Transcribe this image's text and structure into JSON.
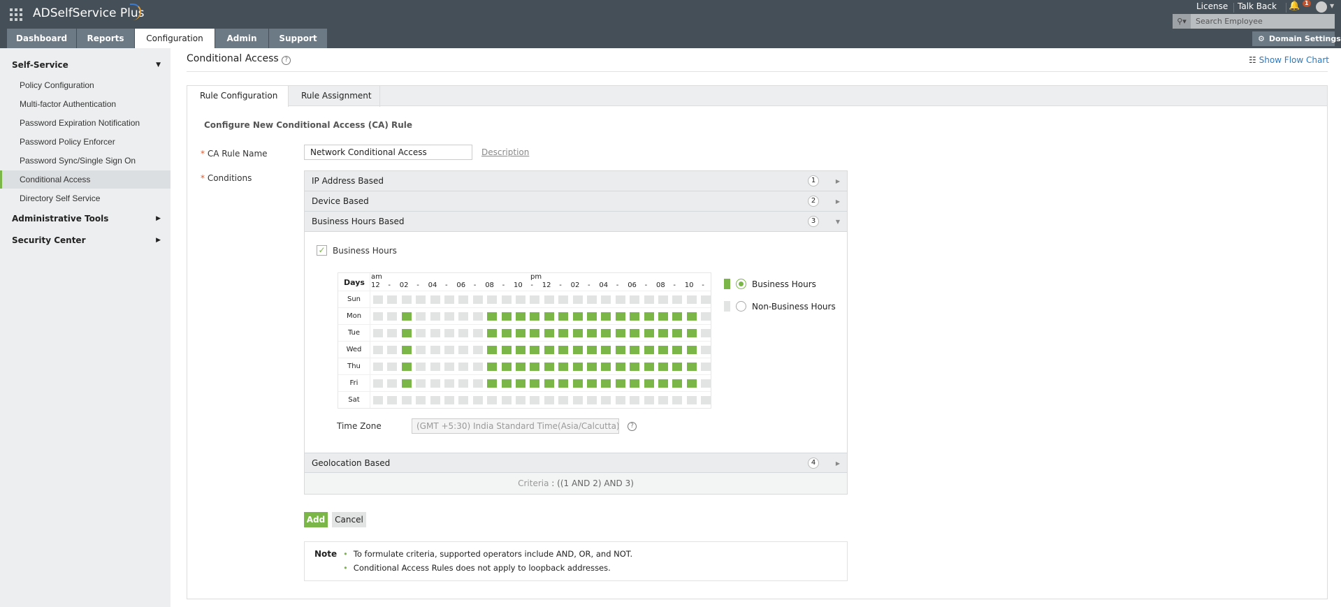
{
  "app": {
    "title": "ADSelfService Plus",
    "tabs": [
      "Dashboard",
      "Reports",
      "Configuration",
      "Admin",
      "Support"
    ],
    "active_tab": "Configuration",
    "links": {
      "license": "License",
      "talk_back": "Talk Back",
      "notifications": "1"
    },
    "search_placeholder": "Search Employee",
    "domain_settings": "Domain Settings"
  },
  "sidebar": {
    "sections": [
      {
        "label": "Self-Service",
        "items": [
          "Policy Configuration",
          "Multi-factor Authentication",
          "Password Expiration Notification",
          "Password Policy Enforcer",
          "Password Sync/Single Sign On",
          "Conditional Access",
          "Directory Self Service"
        ]
      },
      {
        "label": "Administrative Tools"
      },
      {
        "label": "Security Center"
      }
    ],
    "active": "Conditional Access"
  },
  "page": {
    "title": "Conditional Access",
    "show_flow_chart": "Show Flow Chart",
    "tabs": [
      "Rule Configuration",
      "Rule Assignment"
    ],
    "heading": "Configure New Conditional Access (CA) Rule",
    "rule_name_label": "CA Rule Name",
    "rule_name_value": "Network Conditional Access",
    "description_link": "Description",
    "conditions_label": "Conditions",
    "conditions": [
      {
        "label": "IP Address Based",
        "num": "1"
      },
      {
        "label": "Device Based",
        "num": "2"
      },
      {
        "label": "Business Hours Based",
        "num": "3",
        "expanded": true
      },
      {
        "label": "Geolocation Based",
        "num": "4"
      }
    ],
    "business_hours_checkbox": "Business Hours",
    "business_hours_checked": true,
    "grid": {
      "days_label": "Days",
      "am": "am",
      "pm": "pm",
      "hour_labels": [
        "12",
        "-",
        "02",
        "-",
        "04",
        "-",
        "06",
        "-",
        "08",
        "-",
        "10",
        "-",
        "12",
        "-",
        "02",
        "-",
        "04",
        "-",
        "06",
        "-",
        "08",
        "-",
        "10",
        "-"
      ],
      "days": [
        "Sun",
        "Mon",
        "Tue",
        "Wed",
        "Thu",
        "Fri",
        "Sat"
      ],
      "business_hours": {
        "Sun": [],
        "Mon": [
          2,
          8,
          9,
          10,
          11,
          12,
          13,
          14,
          15,
          16,
          17,
          18,
          19,
          20,
          21,
          22
        ],
        "Tue": [
          2,
          8,
          9,
          10,
          11,
          12,
          13,
          14,
          15,
          16,
          17,
          18,
          19,
          20,
          21,
          22
        ],
        "Wed": [
          2,
          8,
          9,
          10,
          11,
          12,
          13,
          14,
          15,
          16,
          17,
          18,
          19,
          20,
          21,
          22
        ],
        "Thu": [
          2,
          8,
          9,
          10,
          11,
          12,
          13,
          14,
          15,
          16,
          17,
          18,
          19,
          20,
          21,
          22
        ],
        "Fri": [
          2,
          8,
          9,
          10,
          11,
          12,
          13,
          14,
          15,
          16,
          17,
          18,
          19,
          20,
          21,
          22
        ],
        "Sat": []
      }
    },
    "legend": {
      "business": "Business Hours",
      "non_business": "Non-Business Hours",
      "selected": "business"
    },
    "time_zone_label": "Time Zone",
    "time_zone_value": "(GMT +5:30) India Standard Time(Asia/Calcutta)",
    "criteria_label": "Criteria",
    "criteria_value": "((1 AND 2) AND 3)",
    "add": "Add",
    "cancel": "Cancel",
    "note_label": "Note",
    "notes": [
      "To formulate criteria, supported operators include AND, OR, and NOT.",
      "Conditional Access Rules does not apply to loopback addresses."
    ]
  },
  "colors": {
    "accent": "#7ab648",
    "topbar": "#454f57",
    "tab": "#6b7a85"
  }
}
